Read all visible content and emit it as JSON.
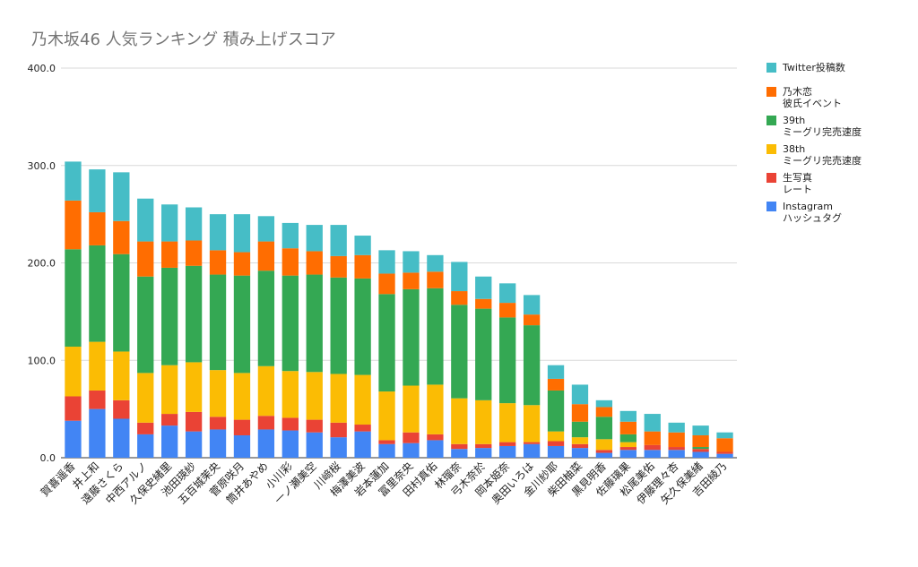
{
  "chart_data": {
    "type": "bar",
    "stacked": true,
    "title": "乃木坂46 人気ランキング 積み上げスコア",
    "xlabel": "",
    "ylabel": "",
    "ylim": [
      0,
      400
    ],
    "yticks": [
      "0.0",
      "100.0",
      "200.0",
      "300.0",
      "400.0"
    ],
    "grid": true,
    "legend_position": "right",
    "categories": [
      "賀喜遥香",
      "井上和",
      "遠藤さくら",
      "中西アルノ",
      "久保史緒里",
      "池田瑛紗",
      "五百城茉央",
      "菅原咲月",
      "筒井あやめ",
      "小川彩",
      "一ノ瀬美空",
      "川﨑桜",
      "梅澤美波",
      "岩本蓮加",
      "冨里奈央",
      "田村真佑",
      "林瑠奈",
      "弓木奈於",
      "岡本姫奈",
      "奥田いろは",
      "金川紗耶",
      "柴田柚菜",
      "黒見明香",
      "佐藤璃果",
      "松尾美佑",
      "伊藤理々杏",
      "矢久保美緒",
      "吉田綾乃"
    ],
    "series": [
      {
        "name": "Instagram\nハッシュタグ",
        "color": "#4285f4",
        "values": [
          38,
          50,
          40,
          24,
          33,
          27,
          29,
          23,
          29,
          28,
          26,
          21,
          27,
          14,
          15,
          18,
          9,
          10,
          12,
          14,
          12,
          10,
          5,
          8,
          8,
          8,
          6,
          4
        ]
      },
      {
        "name": "生写真\nレート",
        "color": "#ea4335",
        "values": [
          25,
          19,
          19,
          12,
          12,
          20,
          13,
          16,
          14,
          13,
          13,
          15,
          7,
          4,
          11,
          6,
          5,
          4,
          4,
          2,
          5,
          4,
          3,
          3,
          5,
          3,
          3,
          2
        ]
      },
      {
        "name": "38th\nミーグリ完売速度",
        "color": "#fbbc04",
        "values": [
          51,
          50,
          50,
          51,
          50,
          51,
          48,
          48,
          51,
          48,
          49,
          50,
          51,
          50,
          48,
          51,
          47,
          45,
          40,
          38,
          10,
          7,
          11,
          5,
          0,
          0,
          0,
          0
        ]
      },
      {
        "name": "39th\nミーグリ完売速度",
        "color": "#34a853",
        "values": [
          100,
          99,
          100,
          99,
          100,
          99,
          98,
          100,
          98,
          98,
          100,
          99,
          99,
          100,
          99,
          99,
          96,
          94,
          88,
          82,
          42,
          16,
          23,
          8,
          0,
          0,
          2,
          0
        ]
      },
      {
        "name": "乃木恋\n彼氏イベント",
        "color": "#ff6d01",
        "values": [
          50,
          34,
          34,
          36,
          27,
          26,
          25,
          24,
          30,
          28,
          24,
          22,
          24,
          21,
          17,
          17,
          14,
          10,
          15,
          11,
          12,
          18,
          10,
          13,
          14,
          15,
          12,
          14
        ]
      },
      {
        "name": "Twitter投稿数",
        "color": "#46bdc6",
        "values": [
          40,
          44,
          50,
          44,
          38,
          34,
          37,
          39,
          26,
          26,
          27,
          32,
          20,
          24,
          22,
          17,
          30,
          23,
          20,
          20,
          14,
          20,
          7,
          11,
          18,
          10,
          10,
          6
        ]
      }
    ]
  }
}
